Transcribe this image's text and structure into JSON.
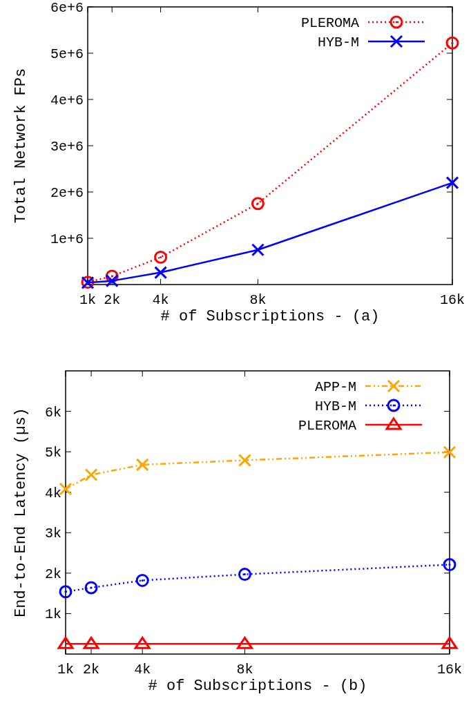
{
  "chart_data": [
    {
      "type": "line",
      "xlabel": "# of Subscriptions - (a)",
      "ylabel": "Total Network FPs",
      "x": [
        1000,
        2000,
        4000,
        8000,
        16000
      ],
      "xlim": [
        1000,
        16000
      ],
      "xticks": [
        {
          "value": 1000,
          "label": "1k"
        },
        {
          "value": 2000,
          "label": "2k"
        },
        {
          "value": 4000,
          "label": "4k"
        },
        {
          "value": 8000,
          "label": "8k"
        },
        {
          "value": 16000,
          "label": "16k"
        }
      ],
      "ylim": [
        0,
        6000000
      ],
      "yticks": [
        {
          "value": 1000000,
          "label": "1e+6"
        },
        {
          "value": 2000000,
          "label": "2e+6"
        },
        {
          "value": 3000000,
          "label": "3e+6"
        },
        {
          "value": 4000000,
          "label": "4e+6"
        },
        {
          "value": 5000000,
          "label": "5e+6"
        },
        {
          "value": 6000000,
          "label": "6e+6"
        }
      ],
      "legend": "top right",
      "grid": false,
      "series": [
        {
          "name": "PLEROMA",
          "color": "#ff0000",
          "values": [
            50000,
            180000,
            590000,
            1750000,
            5220000
          ],
          "marker": "circle",
          "line_style": "dotted"
        },
        {
          "name": "HYB-M",
          "color": "#0000ff",
          "values": [
            40000,
            80000,
            260000,
            750000,
            2200000
          ],
          "marker": "cross",
          "line_style": "solid"
        }
      ]
    },
    {
      "type": "line",
      "xlabel": "# of Subscriptions - (b)",
      "ylabel": "End-to-End Latency (µs)",
      "x": [
        1000,
        2000,
        4000,
        8000,
        16000
      ],
      "xlim": [
        1000,
        16000
      ],
      "xticks": [
        {
          "value": 1000,
          "label": "1k"
        },
        {
          "value": 2000,
          "label": "2k"
        },
        {
          "value": 4000,
          "label": "4k"
        },
        {
          "value": 8000,
          "label": "8k"
        },
        {
          "value": 16000,
          "label": "16k"
        }
      ],
      "ylim": [
        0,
        7000
      ],
      "yticks": [
        {
          "value": 1000,
          "label": "1k"
        },
        {
          "value": 2000,
          "label": "2k"
        },
        {
          "value": 3000,
          "label": "3k"
        },
        {
          "value": 4000,
          "label": "4k"
        },
        {
          "value": 5000,
          "label": "5k"
        },
        {
          "value": 6000,
          "label": "6k"
        }
      ],
      "legend": "top right",
      "grid": false,
      "series": [
        {
          "name": "APP-M",
          "color": "#ffa500",
          "values": [
            4080,
            4430,
            4680,
            4790,
            4990
          ],
          "marker": "cross",
          "line_style": "dashed"
        },
        {
          "name": "HYB-M",
          "color": "#0000ff",
          "values": [
            1540,
            1640,
            1820,
            1970,
            2210
          ],
          "marker": "circle",
          "line_style": "dotted"
        },
        {
          "name": "PLEROMA",
          "color": "#ff0000",
          "values": [
            250,
            250,
            250,
            250,
            250
          ],
          "marker": "triangle",
          "line_style": "solid"
        }
      ]
    }
  ]
}
